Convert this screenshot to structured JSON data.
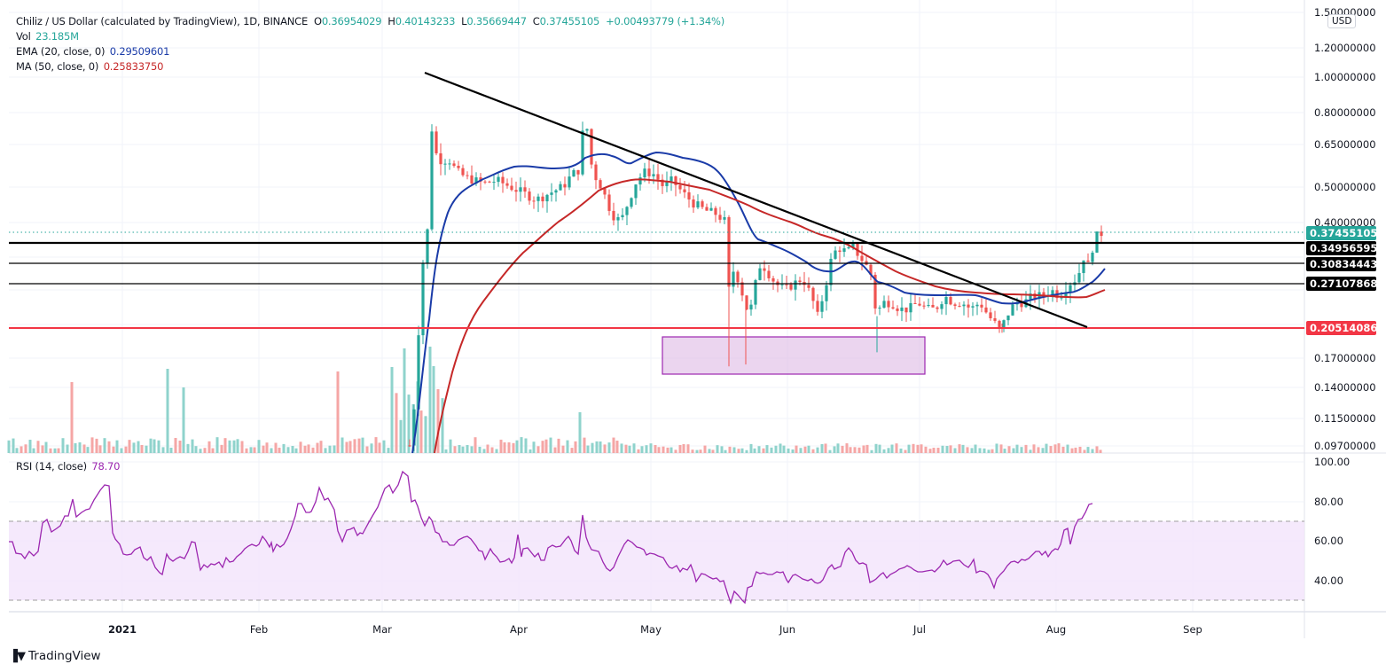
{
  "header": {
    "symbol_title": "Chiliz / US Dollar (calculated by TradingView), 1D, BINANCE",
    "open_label": "O",
    "open": "0.36954029",
    "high_label": "H",
    "high": "0.40143233",
    "low_label": "L",
    "low": "0.35669447",
    "close_label": "C",
    "close": "0.37455105",
    "change": "+0.00493779 (+1.34%)",
    "vol_label": "Vol",
    "vol": "23.185M",
    "ema_label": "EMA (20, close, 0)",
    "ema": "0.29509601",
    "ma_label": "MA (50, close, 0)",
    "ma": "0.25833750",
    "rsi_label": "RSI (14, close)",
    "rsi": "78.70"
  },
  "price_axis": {
    "currency": "USD",
    "ticks": [
      "1.50000000",
      "1.20000000",
      "1.00000000",
      "0.80000000",
      "0.65000000",
      "0.50000000",
      "0.40000000",
      "0.17000000",
      "0.14000000",
      "0.11500000",
      "0.09700000"
    ]
  },
  "rsi_axis": {
    "ticks": [
      "100.00",
      "80.00",
      "60.00",
      "40.00"
    ]
  },
  "time_axis": {
    "labels": [
      "2021",
      "Feb",
      "Mar",
      "Apr",
      "May",
      "Jun",
      "Jul",
      "Aug",
      "Sep"
    ]
  },
  "badges": {
    "last_price": "0.37455105",
    "level_1": "0.34956595",
    "level_2": "0.30834443",
    "level_3": "0.27107868",
    "support": "0.20514086"
  },
  "colors": {
    "up": "#26a69a",
    "down": "#ef5350",
    "ema": "#1a3ba8",
    "ma": "#c62828",
    "rsi": "#9c27b0",
    "support": "#f23645",
    "box": "#9c27b0"
  },
  "branding": {
    "logo_text": "TradingView"
  },
  "chart_data": {
    "type": "candlestick",
    "title": "Chiliz / US Dollar (calculated by TradingView), 1D, BINANCE",
    "xlabel": "",
    "ylabel": "USD",
    "scale": "log",
    "ylim": [
      0.097,
      1.5
    ],
    "x_ticks": [
      "2021",
      "Feb",
      "Mar",
      "Apr",
      "May",
      "Jun",
      "Jul",
      "Aug",
      "Sep"
    ],
    "last_bar": {
      "open": 0.36954029,
      "high": 0.40143233,
      "low": 0.35669447,
      "close": 0.37455105,
      "change": 0.00493779,
      "change_pct": 1.34,
      "volume": "23.185M"
    },
    "indicators": {
      "EMA_20": 0.29509601,
      "MA_50": 0.2583375,
      "RSI_14": 78.7
    },
    "horizontal_levels": [
      0.34956595,
      0.30834443,
      0.27107868,
      0.20514086
    ],
    "trendline": {
      "from": {
        "date": "2021-03-13",
        "price": 1.02
      },
      "to": {
        "date": "2021-07-29",
        "price": 0.205
      }
    },
    "zone_box": {
      "from": "2021-05-03",
      "to": "2021-06-30",
      "price_top": 0.19,
      "price_bottom": 0.155
    },
    "approx_monthly_closes": [
      {
        "date": "2021-03-01",
        "close": 0.095
      },
      {
        "date": "2021-03-13",
        "close": 0.75
      },
      {
        "date": "2021-04-01",
        "close": 0.48
      },
      {
        "date": "2021-04-15",
        "close": 0.75
      },
      {
        "date": "2021-05-01",
        "close": 0.52
      },
      {
        "date": "2021-05-19",
        "close": 0.26
      },
      {
        "date": "2021-06-01",
        "close": 0.3
      },
      {
        "date": "2021-06-15",
        "close": 0.33
      },
      {
        "date": "2021-07-01",
        "close": 0.24
      },
      {
        "date": "2021-07-20",
        "close": 0.21
      },
      {
        "date": "2021-08-01",
        "close": 0.26
      },
      {
        "date": "2021-08-13",
        "close": 0.3746
      }
    ],
    "rsi_panel": {
      "ylim": [
        20,
        100
      ],
      "overbought": 70,
      "oversold": 30,
      "last": 78.7,
      "peaks": [
        {
          "date": "2020-12-28",
          "value": 88
        },
        {
          "date": "2021-03-12",
          "value": 95
        },
        {
          "date": "2021-04-15",
          "value": 73
        }
      ],
      "troughs": [
        {
          "date": "2021-05-19",
          "value": 30
        },
        {
          "date": "2021-05-23",
          "value": 30
        },
        {
          "date": "2021-07-20",
          "value": 37
        }
      ]
    }
  }
}
